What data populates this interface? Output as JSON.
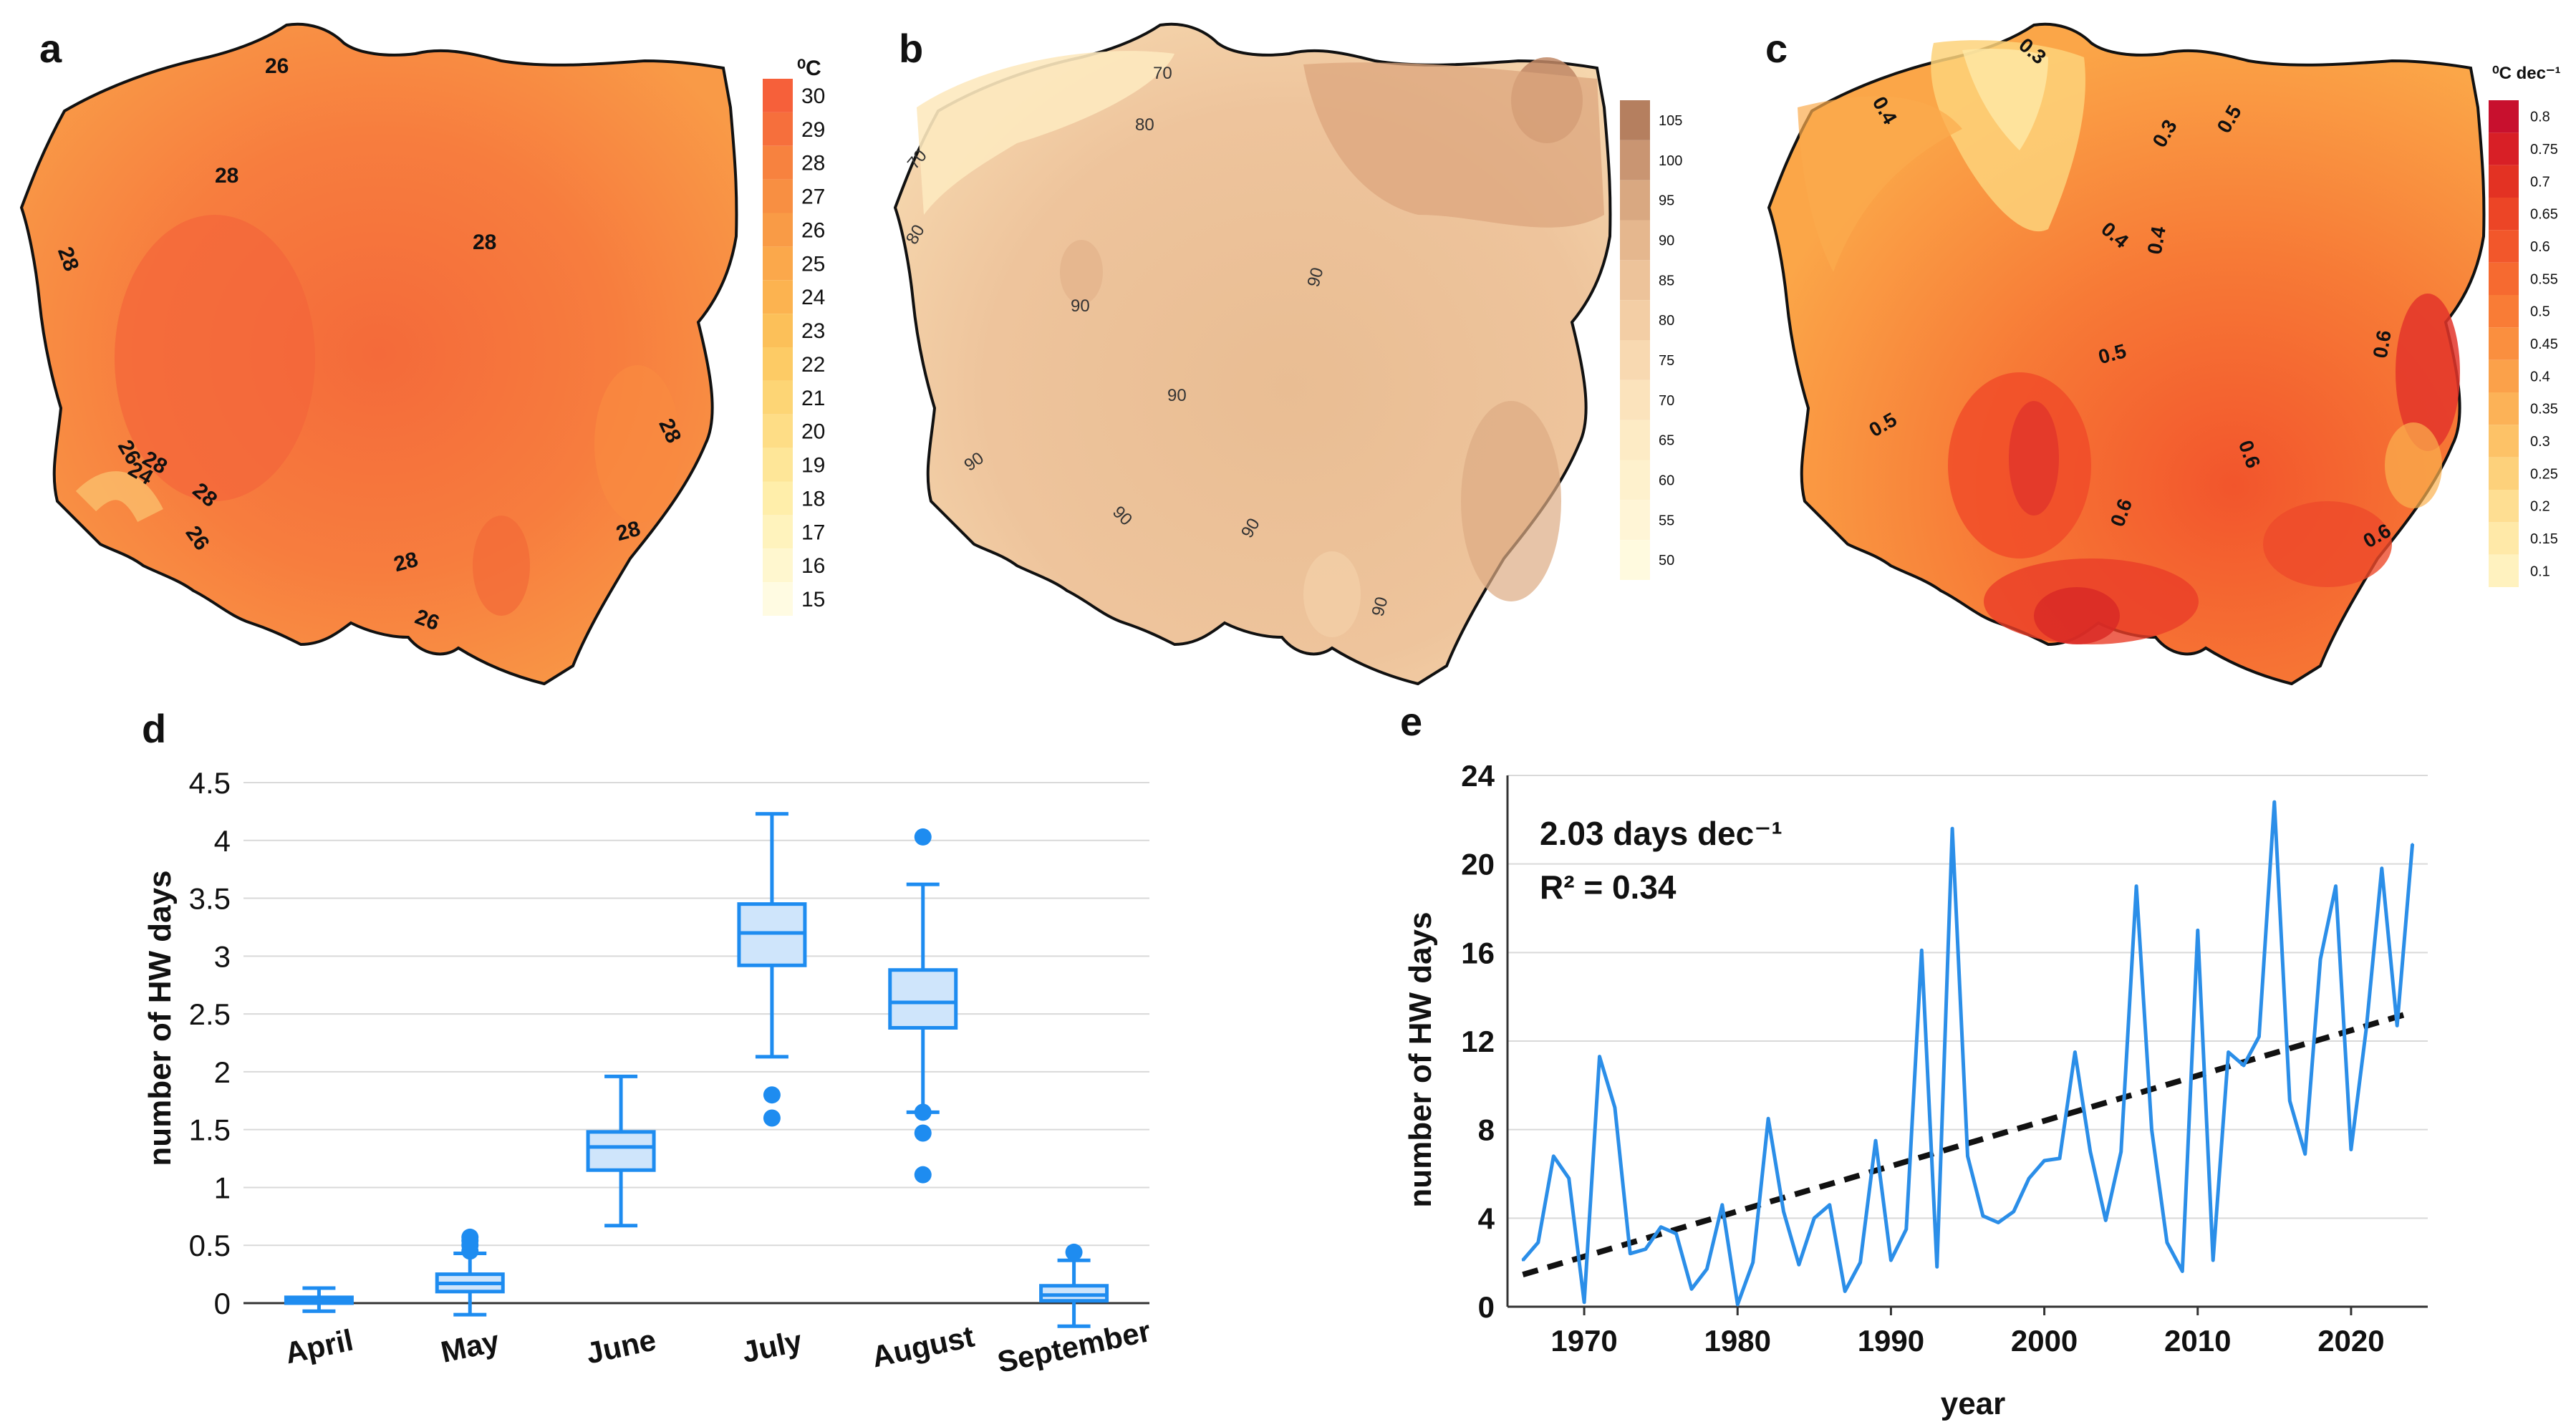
{
  "panels": {
    "a": {
      "letter": "a",
      "unit": "⁰C",
      "legend": [
        "30",
        "29",
        "28",
        "27",
        "26",
        "25",
        "24",
        "23",
        "22",
        "21",
        "20",
        "19",
        "18",
        "17",
        "16",
        "15"
      ],
      "legend_colors": [
        "#f6603a",
        "#f66f3c",
        "#f7823f",
        "#f88f42",
        "#f99b46",
        "#fba84b",
        "#fcb350",
        "#fcc059",
        "#fdcb65",
        "#fdd575",
        "#fedd86",
        "#fee698",
        "#ffeeaa",
        "#fff3bd",
        "#fff7cf",
        "#fffbe2"
      ],
      "contour_labels": [
        "26",
        "28",
        "28",
        "28",
        "28",
        "26",
        "24",
        "28",
        "26",
        "28",
        "28",
        "28",
        "26"
      ]
    },
    "b": {
      "letter": "b",
      "legend": [
        "105",
        "100",
        "95",
        "90",
        "85",
        "80",
        "75",
        "70",
        "65",
        "60",
        "55",
        "50"
      ],
      "legend_colors": [
        "#b57f5f",
        "#c99572",
        "#d9a881",
        "#e5b78e",
        "#edc39a",
        "#f3cea5",
        "#f8d9b1",
        "#fbe3bc",
        "#fdebc5",
        "#fef1cd",
        "#fff5d6",
        "#fffadf"
      ],
      "contour_labels": [
        "70",
        "80",
        "70",
        "80",
        "90",
        "90",
        "90",
        "90",
        "90",
        "90",
        "90"
      ]
    },
    "c": {
      "letter": "c",
      "unit": "⁰C dec⁻¹",
      "legend": [
        "0.8",
        "0.75",
        "0.7",
        "0.65",
        "0.6",
        "0.55",
        "0.5",
        "0.45",
        "0.4",
        "0.35",
        "0.3",
        "0.25",
        "0.2",
        "0.15",
        "0.1"
      ],
      "legend_colors": [
        "#c8102e",
        "#d81f26",
        "#e33223",
        "#ec4526",
        "#f2572b",
        "#f66a30",
        "#f97c36",
        "#fa8f3f",
        "#fba14a",
        "#fcb257",
        "#fdc267",
        "#fdd17b",
        "#fede92",
        "#ffe9a8",
        "#fff2bf"
      ],
      "contour_labels": [
        "0.3",
        "0.4",
        "0.3",
        "0.5",
        "0.4",
        "0.4",
        "0.5",
        "0.5",
        "0.6",
        "0.6",
        "0.6",
        "0.6"
      ]
    },
    "d": {
      "letter": "d"
    },
    "e": {
      "letter": "e"
    }
  },
  "chart_data": [
    {
      "type": "box",
      "panel": "d",
      "ylabel": "number of HW days",
      "categories": [
        "April",
        "May",
        "June",
        "July",
        "August",
        "September"
      ],
      "ylim": [
        0,
        4.5
      ],
      "yticks": [
        "0",
        "0.5",
        "1",
        "1.5",
        "2",
        "2.5",
        "3",
        "3.5",
        "4",
        "4.5"
      ],
      "boxes": [
        {
          "min": -0.07,
          "q1": 0.0,
          "median": 0.02,
          "q3": 0.05,
          "max": 0.13,
          "outliers": []
        },
        {
          "min": -0.1,
          "q1": 0.1,
          "median": 0.17,
          "q3": 0.25,
          "max": 0.43,
          "outliers": [
            0.45,
            0.5,
            0.54,
            0.57
          ]
        },
        {
          "min": 0.67,
          "q1": 1.15,
          "median": 1.35,
          "q3": 1.48,
          "max": 1.96,
          "outliers": []
        },
        {
          "min": 2.13,
          "q1": 2.92,
          "median": 3.2,
          "q3": 3.45,
          "max": 4.23,
          "outliers": [
            1.8,
            1.6
          ]
        },
        {
          "min": 1.65,
          "q1": 2.38,
          "median": 2.6,
          "q3": 2.88,
          "max": 3.62,
          "outliers": [
            4.03,
            1.65,
            1.47,
            1.11
          ]
        },
        {
          "min": -0.2,
          "q1": 0.02,
          "median": 0.07,
          "q3": 0.15,
          "max": 0.37,
          "outliers": [
            0.44
          ]
        }
      ]
    },
    {
      "type": "line",
      "panel": "e",
      "xlabel": "year",
      "ylabel": "number of HW days",
      "xlim": [
        1965,
        2025
      ],
      "ylim": [
        0,
        24
      ],
      "xticks": [
        "1970",
        "1980",
        "1990",
        "2000",
        "2010",
        "2020"
      ],
      "yticks": [
        "0",
        "4",
        "8",
        "12",
        "16",
        "20",
        "24"
      ],
      "annotation_line1": "2.03 days dec⁻¹",
      "annotation_line2": "R² = 0.34",
      "x": [
        1966,
        1967,
        1968,
        1969,
        1970,
        1971,
        1972,
        1973,
        1974,
        1975,
        1976,
        1977,
        1978,
        1979,
        1980,
        1981,
        1982,
        1983,
        1984,
        1985,
        1986,
        1987,
        1988,
        1989,
        1990,
        1991,
        1992,
        1993,
        1994,
        1995,
        1996,
        1997,
        1998,
        1999,
        2000,
        2001,
        2002,
        2003,
        2004,
        2005,
        2006,
        2007,
        2008,
        2009,
        2010,
        2011,
        2012,
        2013,
        2014,
        2015,
        2016,
        2017,
        2018,
        2019,
        2020,
        2021,
        2022,
        2023,
        2024
      ],
      "y": [
        2.1,
        2.9,
        6.8,
        5.8,
        0.2,
        11.3,
        9.0,
        2.4,
        2.6,
        3.6,
        3.3,
        0.8,
        1.7,
        4.6,
        0.1,
        2.0,
        8.5,
        4.3,
        1.9,
        4.0,
        4.6,
        0.7,
        2.0,
        7.5,
        2.1,
        3.5,
        16.1,
        1.8,
        21.6,
        6.8,
        4.1,
        3.8,
        4.3,
        5.8,
        6.6,
        6.7,
        11.5,
        7.0,
        3.9,
        7.0,
        19.0,
        8.0,
        2.9,
        1.6,
        17.0,
        2.1,
        11.5,
        10.9,
        12.2,
        22.8,
        9.3,
        6.9,
        15.7,
        19.0,
        7.1,
        12.6,
        19.8,
        12.7,
        20.9
      ],
      "trend": {
        "x": [
          1966,
          2024
        ],
        "y": [
          1.45,
          13.3
        ]
      },
      "line_color": "#2b8ee8"
    }
  ]
}
